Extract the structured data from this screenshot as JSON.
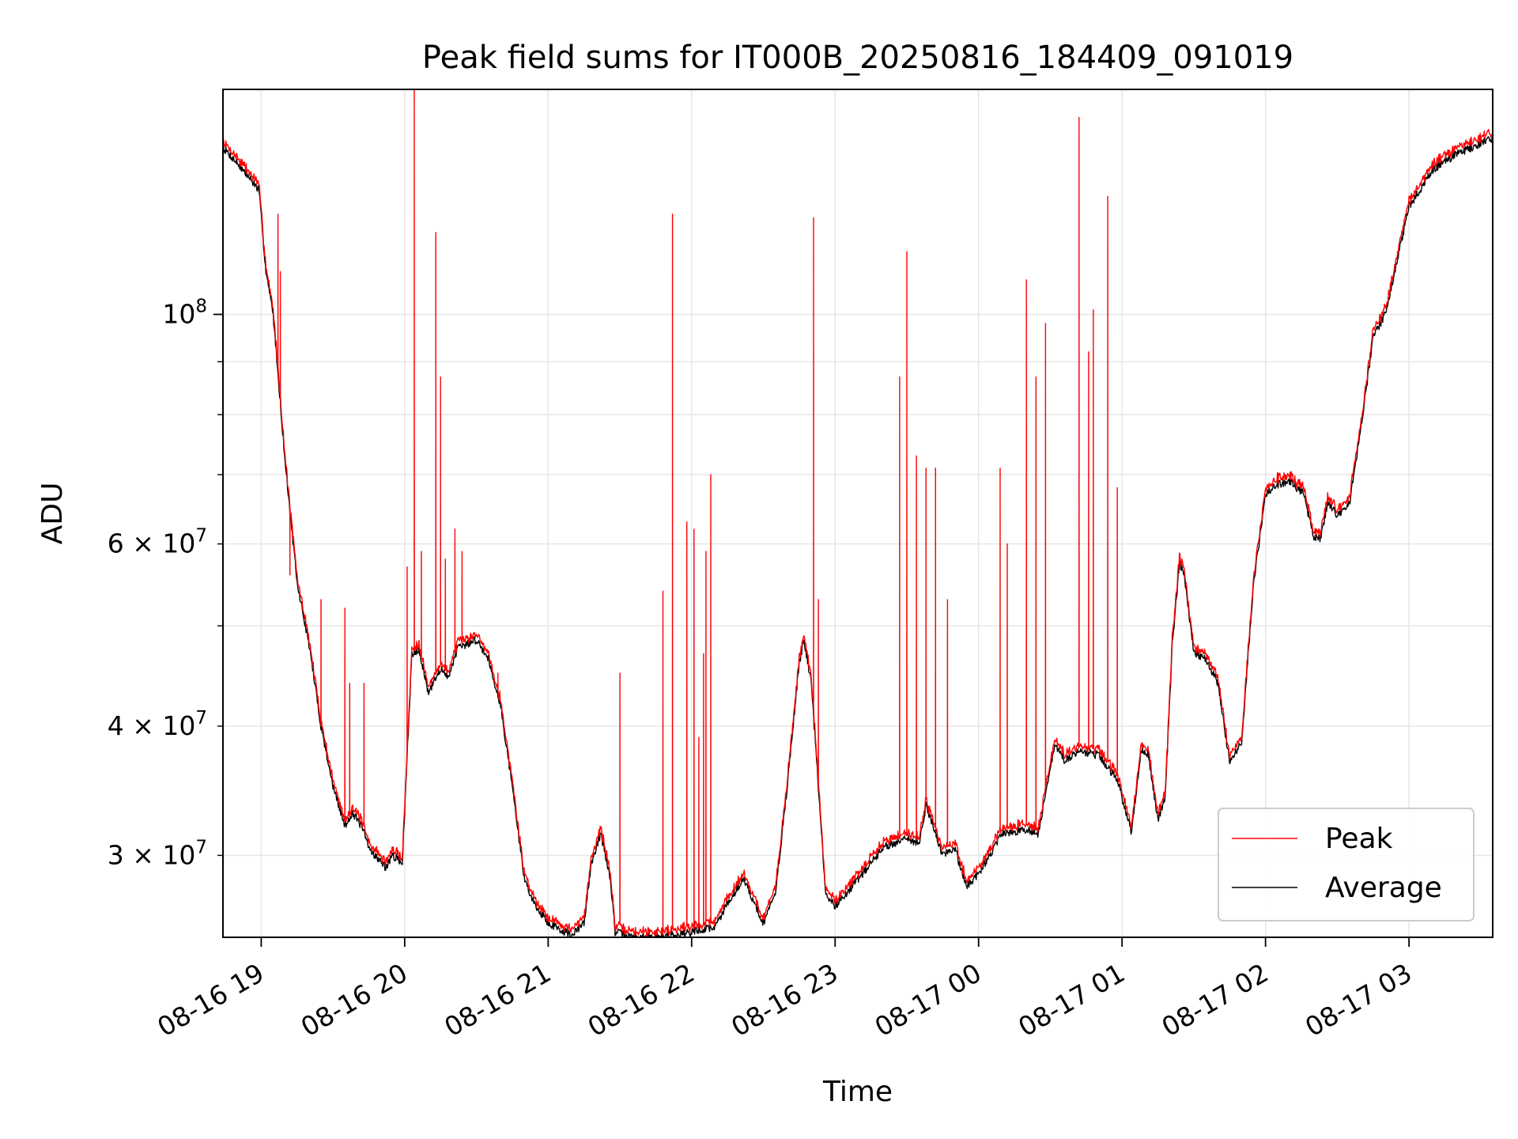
{
  "chart_data": {
    "type": "line",
    "title": "Peak field sums for IT000B_20250816_184409_091019",
    "xlabel": "Time",
    "ylabel": "ADU",
    "x_axis": {
      "kind": "time",
      "range": [
        "2025-08-16 18:44",
        "2025-08-17 03:35"
      ],
      "ticks": [
        "2025-08-16 19:00",
        "2025-08-16 20:00",
        "2025-08-16 21:00",
        "2025-08-16 22:00",
        "2025-08-16 23:00",
        "2025-08-17 00:00",
        "2025-08-17 01:00",
        "2025-08-17 02:00",
        "2025-08-17 03:00"
      ],
      "tick_labels": [
        "08-16 19",
        "08-16 20",
        "08-16 21",
        "08-16 22",
        "08-16 23",
        "08-17 00",
        "08-17 01",
        "08-17 02",
        "08-17 03"
      ]
    },
    "y_axis": {
      "scale": "log",
      "range": [
        25000000,
        165000000
      ],
      "major_ticks": [
        {
          "value": 100000000,
          "mantissa": "",
          "exp": "8"
        }
      ],
      "minor_labeled_ticks": [
        {
          "value": 30000000,
          "mantissa": "3",
          "exp": "7"
        },
        {
          "value": 40000000,
          "mantissa": "4",
          "exp": "7"
        },
        {
          "value": 60000000,
          "mantissa": "6",
          "exp": "7"
        }
      ],
      "minor_ticks": [
        30000000,
        40000000,
        50000000,
        60000000,
        70000000,
        80000000,
        90000000
      ]
    },
    "grid": true,
    "legend": {
      "position": "lower-right"
    },
    "series": [
      {
        "name": "Peak",
        "color": "#ff0000",
        "role": "peak"
      },
      {
        "name": "Average",
        "color": "#000000",
        "role": "average"
      }
    ],
    "average_series": [
      [
        "2025-08-16 18:44",
        145000000
      ],
      [
        "2025-08-16 18:50",
        140000000
      ],
      [
        "2025-08-16 18:59",
        132000000
      ],
      [
        "2025-08-16 19:02",
        110000000
      ],
      [
        "2025-08-16 19:05",
        100000000
      ],
      [
        "2025-08-16 19:10",
        72000000
      ],
      [
        "2025-08-16 19:15",
        55000000
      ],
      [
        "2025-08-16 19:20",
        48000000
      ],
      [
        "2025-08-16 19:25",
        40000000
      ],
      [
        "2025-08-16 19:30",
        35000000
      ],
      [
        "2025-08-16 19:35",
        32000000
      ],
      [
        "2025-08-16 19:38",
        33000000
      ],
      [
        "2025-08-16 19:42",
        32000000
      ],
      [
        "2025-08-16 19:45",
        30500000
      ],
      [
        "2025-08-16 19:52",
        29200000
      ],
      [
        "2025-08-16 19:55",
        30000000
      ],
      [
        "2025-08-16 19:59",
        29500000
      ],
      [
        "2025-08-16 20:03",
        47000000
      ],
      [
        "2025-08-16 20:06",
        47500000
      ],
      [
        "2025-08-16 20:10",
        43000000
      ],
      [
        "2025-08-16 20:15",
        45500000
      ],
      [
        "2025-08-16 20:18",
        44500000
      ],
      [
        "2025-08-16 20:22",
        47500000
      ],
      [
        "2025-08-16 20:30",
        48500000
      ],
      [
        "2025-08-16 20:35",
        46500000
      ],
      [
        "2025-08-16 20:40",
        42000000
      ],
      [
        "2025-08-16 20:45",
        35000000
      ],
      [
        "2025-08-16 20:50",
        28500000
      ],
      [
        "2025-08-16 20:54",
        27000000
      ],
      [
        "2025-08-16 21:00",
        25800000
      ],
      [
        "2025-08-16 21:10",
        25100000
      ],
      [
        "2025-08-16 21:15",
        25800000
      ],
      [
        "2025-08-16 21:18",
        29500000
      ],
      [
        "2025-08-16 21:22",
        31500000
      ],
      [
        "2025-08-16 21:26",
        28500000
      ],
      [
        "2025-08-16 21:28",
        25300000
      ],
      [
        "2025-08-16 21:35",
        25000000
      ],
      [
        "2025-08-16 21:45",
        25000000
      ],
      [
        "2025-08-16 22:00",
        25300000
      ],
      [
        "2025-08-16 22:10",
        25600000
      ],
      [
        "2025-08-16 22:15",
        27000000
      ],
      [
        "2025-08-16 22:22",
        28500000
      ],
      [
        "2025-08-16 22:26",
        27000000
      ],
      [
        "2025-08-16 22:30",
        25800000
      ],
      [
        "2025-08-16 22:35",
        27500000
      ],
      [
        "2025-08-16 22:40",
        35000000
      ],
      [
        "2025-08-16 22:45",
        46000000
      ],
      [
        "2025-08-16 22:47",
        48500000
      ],
      [
        "2025-08-16 22:50",
        44000000
      ],
      [
        "2025-08-16 22:53",
        35000000
      ],
      [
        "2025-08-16 22:56",
        27500000
      ],
      [
        "2025-08-16 23:00",
        26800000
      ],
      [
        "2025-08-16 23:10",
        28500000
      ],
      [
        "2025-08-16 23:20",
        30500000
      ],
      [
        "2025-08-16 23:30",
        31200000
      ],
      [
        "2025-08-16 23:35",
        30800000
      ],
      [
        "2025-08-16 23:38",
        33500000
      ],
      [
        "2025-08-16 23:41",
        32000000
      ],
      [
        "2025-08-16 23:45",
        30000000
      ],
      [
        "2025-08-16 23:50",
        30500000
      ],
      [
        "2025-08-16 23:55",
        28000000
      ],
      [
        "2025-08-17 00:00",
        28800000
      ],
      [
        "2025-08-17 00:10",
        31500000
      ],
      [
        "2025-08-17 00:20",
        31800000
      ],
      [
        "2025-08-17 00:25",
        31500000
      ],
      [
        "2025-08-17 00:32",
        38500000
      ],
      [
        "2025-08-17 00:36",
        37000000
      ],
      [
        "2025-08-17 00:42",
        37800000
      ],
      [
        "2025-08-17 00:50",
        37500000
      ],
      [
        "2025-08-17 00:58",
        35500000
      ],
      [
        "2025-08-17 01:04",
        31500000
      ],
      [
        "2025-08-17 01:08",
        38000000
      ],
      [
        "2025-08-17 01:11",
        37500000
      ],
      [
        "2025-08-17 01:15",
        32500000
      ],
      [
        "2025-08-17 01:18",
        34000000
      ],
      [
        "2025-08-17 01:21",
        48000000
      ],
      [
        "2025-08-17 01:24",
        57500000
      ],
      [
        "2025-08-17 01:26",
        56000000
      ],
      [
        "2025-08-17 01:30",
        47000000
      ],
      [
        "2025-08-17 01:35",
        46500000
      ],
      [
        "2025-08-17 01:40",
        44000000
      ],
      [
        "2025-08-17 01:45",
        37000000
      ],
      [
        "2025-08-17 01:50",
        38500000
      ],
      [
        "2025-08-17 01:55",
        55000000
      ],
      [
        "2025-08-17 02:00",
        67000000
      ],
      [
        "2025-08-17 02:05",
        68500000
      ],
      [
        "2025-08-17 02:10",
        69000000
      ],
      [
        "2025-08-17 02:16",
        67000000
      ],
      [
        "2025-08-17 02:20",
        61000000
      ],
      [
        "2025-08-17 02:23",
        60500000
      ],
      [
        "2025-08-17 02:26",
        66000000
      ],
      [
        "2025-08-17 02:30",
        64000000
      ],
      [
        "2025-08-17 02:35",
        65500000
      ],
      [
        "2025-08-17 02:40",
        78000000
      ],
      [
        "2025-08-17 02:45",
        95000000
      ],
      [
        "2025-08-17 02:50",
        100000000
      ],
      [
        "2025-08-17 03:00",
        127000000
      ],
      [
        "2025-08-17 03:10",
        138000000
      ],
      [
        "2025-08-17 03:20",
        143000000
      ],
      [
        "2025-08-17 03:35",
        148000000
      ]
    ],
    "peak_spikes": [
      [
        "2025-08-16 19:07",
        125000000
      ],
      [
        "2025-08-16 19:08",
        110000000
      ],
      [
        "2025-08-16 19:12",
        56000000
      ],
      [
        "2025-08-16 19:25",
        53000000
      ],
      [
        "2025-08-16 19:35",
        52000000
      ],
      [
        "2025-08-16 19:37",
        44000000
      ],
      [
        "2025-08-16 19:43",
        44000000
      ],
      [
        "2025-08-16 20:01",
        57000000
      ],
      [
        "2025-08-16 20:04",
        165000000
      ],
      [
        "2025-08-16 20:07",
        59000000
      ],
      [
        "2025-08-16 20:13",
        120000000
      ],
      [
        "2025-08-16 20:15",
        87000000
      ],
      [
        "2025-08-16 20:17",
        58000000
      ],
      [
        "2025-08-16 20:21",
        62000000
      ],
      [
        "2025-08-16 20:24",
        59000000
      ],
      [
        "2025-08-16 20:39",
        45000000
      ],
      [
        "2025-08-16 21:30",
        45000000
      ],
      [
        "2025-08-16 21:48",
        54000000
      ],
      [
        "2025-08-16 21:52",
        125000000
      ],
      [
        "2025-08-16 21:58",
        63000000
      ],
      [
        "2025-08-16 22:01",
        62000000
      ],
      [
        "2025-08-16 22:03",
        39000000
      ],
      [
        "2025-08-16 22:05",
        47000000
      ],
      [
        "2025-08-16 22:06",
        59000000
      ],
      [
        "2025-08-16 22:08",
        70000000
      ],
      [
        "2025-08-16 22:51",
        124000000
      ],
      [
        "2025-08-16 22:53",
        53000000
      ],
      [
        "2025-08-16 23:27",
        87000000
      ],
      [
        "2025-08-16 23:30",
        115000000
      ],
      [
        "2025-08-16 23:34",
        73000000
      ],
      [
        "2025-08-16 23:38",
        71000000
      ],
      [
        "2025-08-16 23:42",
        71000000
      ],
      [
        "2025-08-16 23:47",
        53000000
      ],
      [
        "2025-08-17 00:09",
        71000000
      ],
      [
        "2025-08-17 00:12",
        60000000
      ],
      [
        "2025-08-17 00:20",
        108000000
      ],
      [
        "2025-08-17 00:24",
        87000000
      ],
      [
        "2025-08-17 00:28",
        98000000
      ],
      [
        "2025-08-17 00:42",
        155000000
      ],
      [
        "2025-08-17 00:46",
        92000000
      ],
      [
        "2025-08-17 00:48",
        101000000
      ],
      [
        "2025-08-17 00:54",
        130000000
      ],
      [
        "2025-08-17 00:58",
        68000000
      ]
    ]
  }
}
